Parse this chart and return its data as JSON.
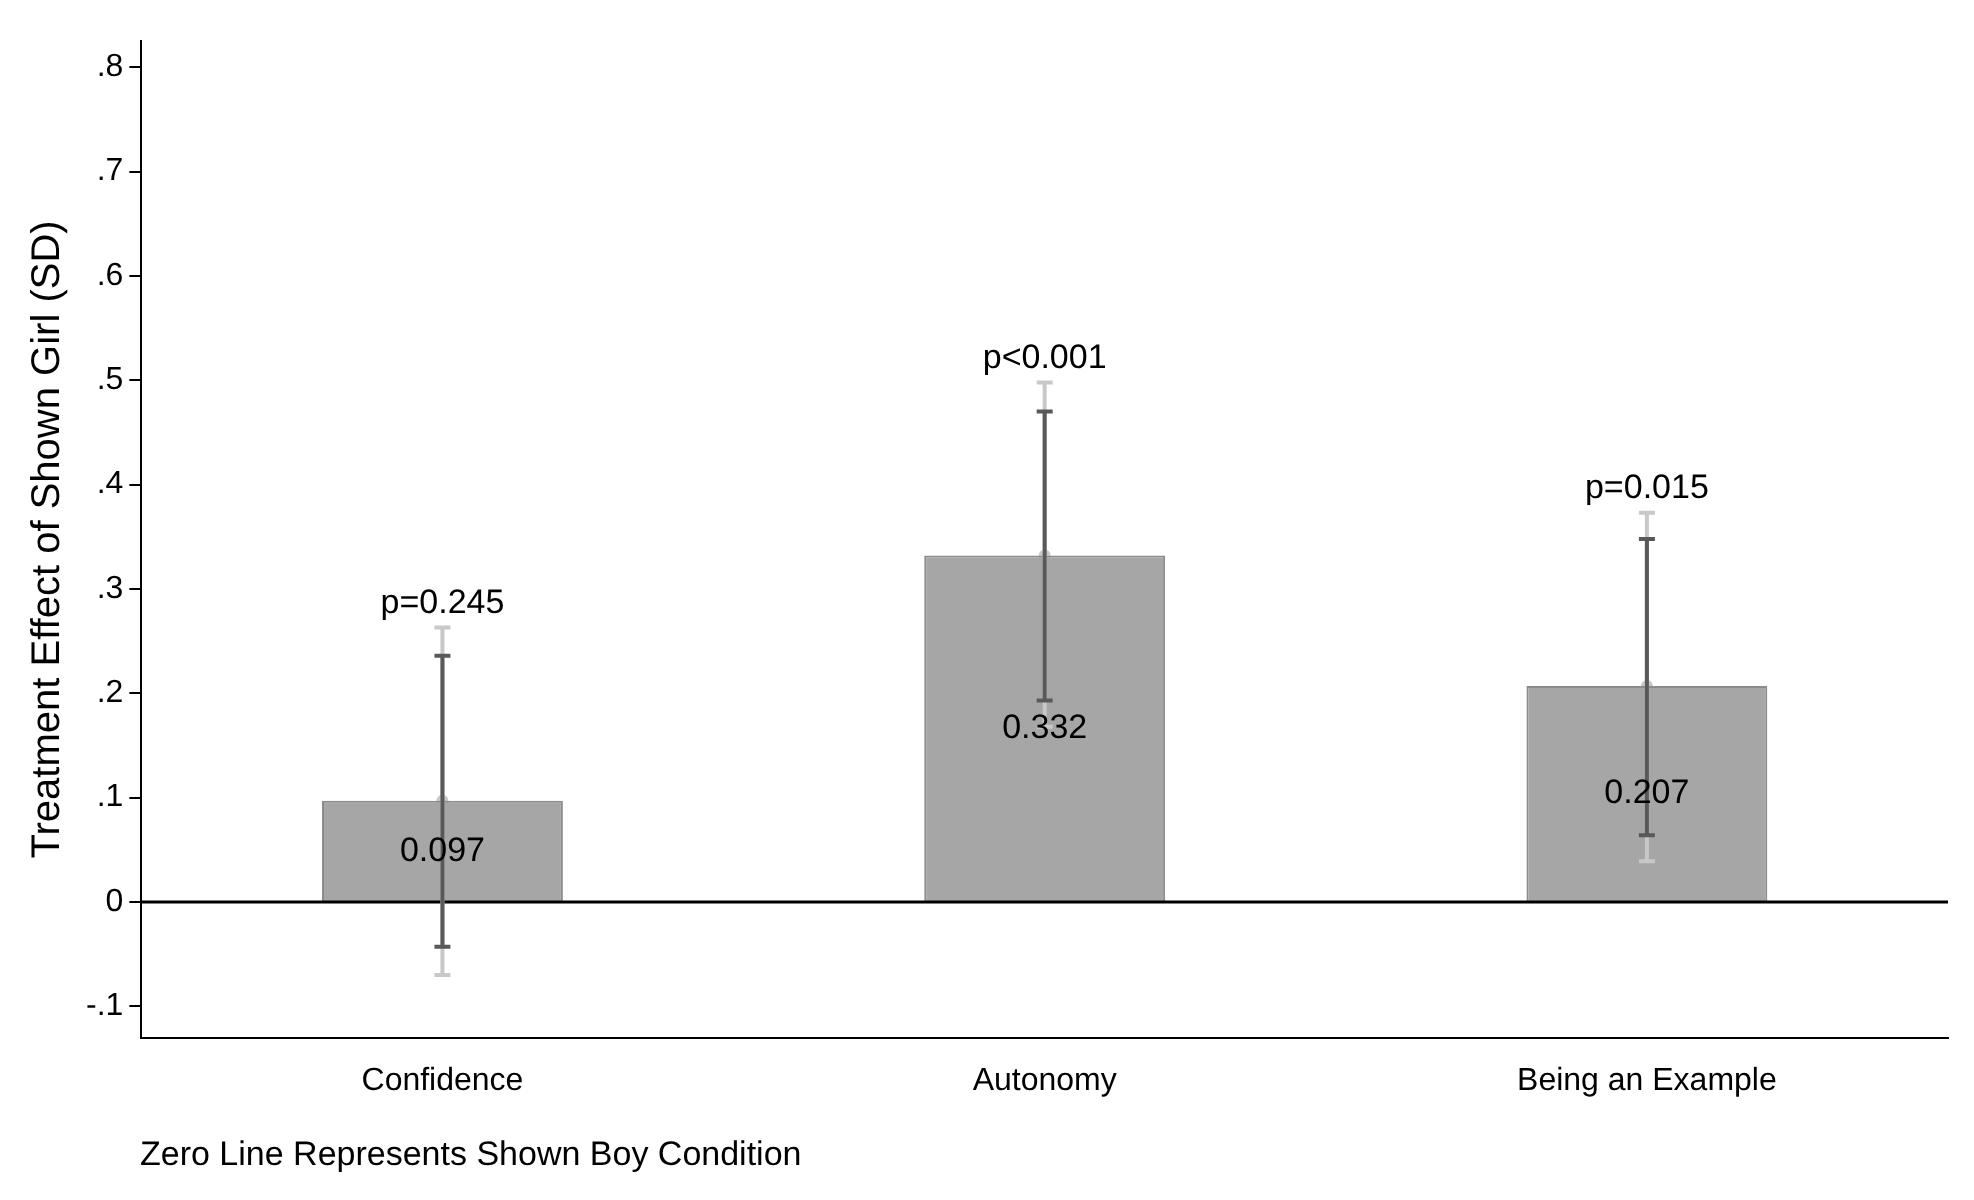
{
  "chart_data": {
    "type": "bar",
    "ylabel": "Treatment Effect of Shown Girl (SD)",
    "categories": [
      "Confidence",
      "Autonomy",
      "Being an Example"
    ],
    "series": [
      {
        "color": "#a6a6a6",
        "values": [
          0.097,
          0.332,
          0.207
        ],
        "errors": [
          [
            -0.043,
            0.236
          ],
          [
            0.193,
            0.47
          ],
          [
            0.064,
            0.348
          ]
        ],
        "value_labels": [
          "0.097",
          "0.332",
          "0.207"
        ]
      },
      {
        "type": "scatter",
        "marker": "circle",
        "color": "#c8c8c8",
        "values": [
          0.097,
          0.332,
          0.207
        ],
        "errors": [
          [
            -0.07,
            0.263
          ],
          [
            0.168,
            0.498
          ],
          [
            0.039,
            0.373
          ]
        ]
      }
    ],
    "ylim": [
      -0.13,
      0.825
    ],
    "yticks": [
      {
        "value": -0.1,
        "label": "-.1"
      },
      0,
      {
        "value": 0.1,
        "label": ".1"
      },
      {
        "value": 0.2,
        "label": ".2"
      },
      {
        "value": 0.3,
        "label": ".3"
      },
      {
        "value": 0.4,
        "label": ".4"
      },
      {
        "value": 0.5,
        "label": ".5"
      },
      {
        "value": 0.6,
        "label": ".6"
      },
      {
        "value": 0.7,
        "label": ".7"
      },
      {
        "value": 0.8,
        "label": ".8"
      }
    ],
    "grid": false,
    "legend": false,
    "ref_lines": [
      {
        "axis": "y",
        "value": 0,
        "label": null,
        "color": "#000000"
      }
    ],
    "annotations": [
      "p=0.245",
      "p<0.001",
      "p=0.015",
      "Zero Line Represents Shown Boy Condition"
    ]
  }
}
